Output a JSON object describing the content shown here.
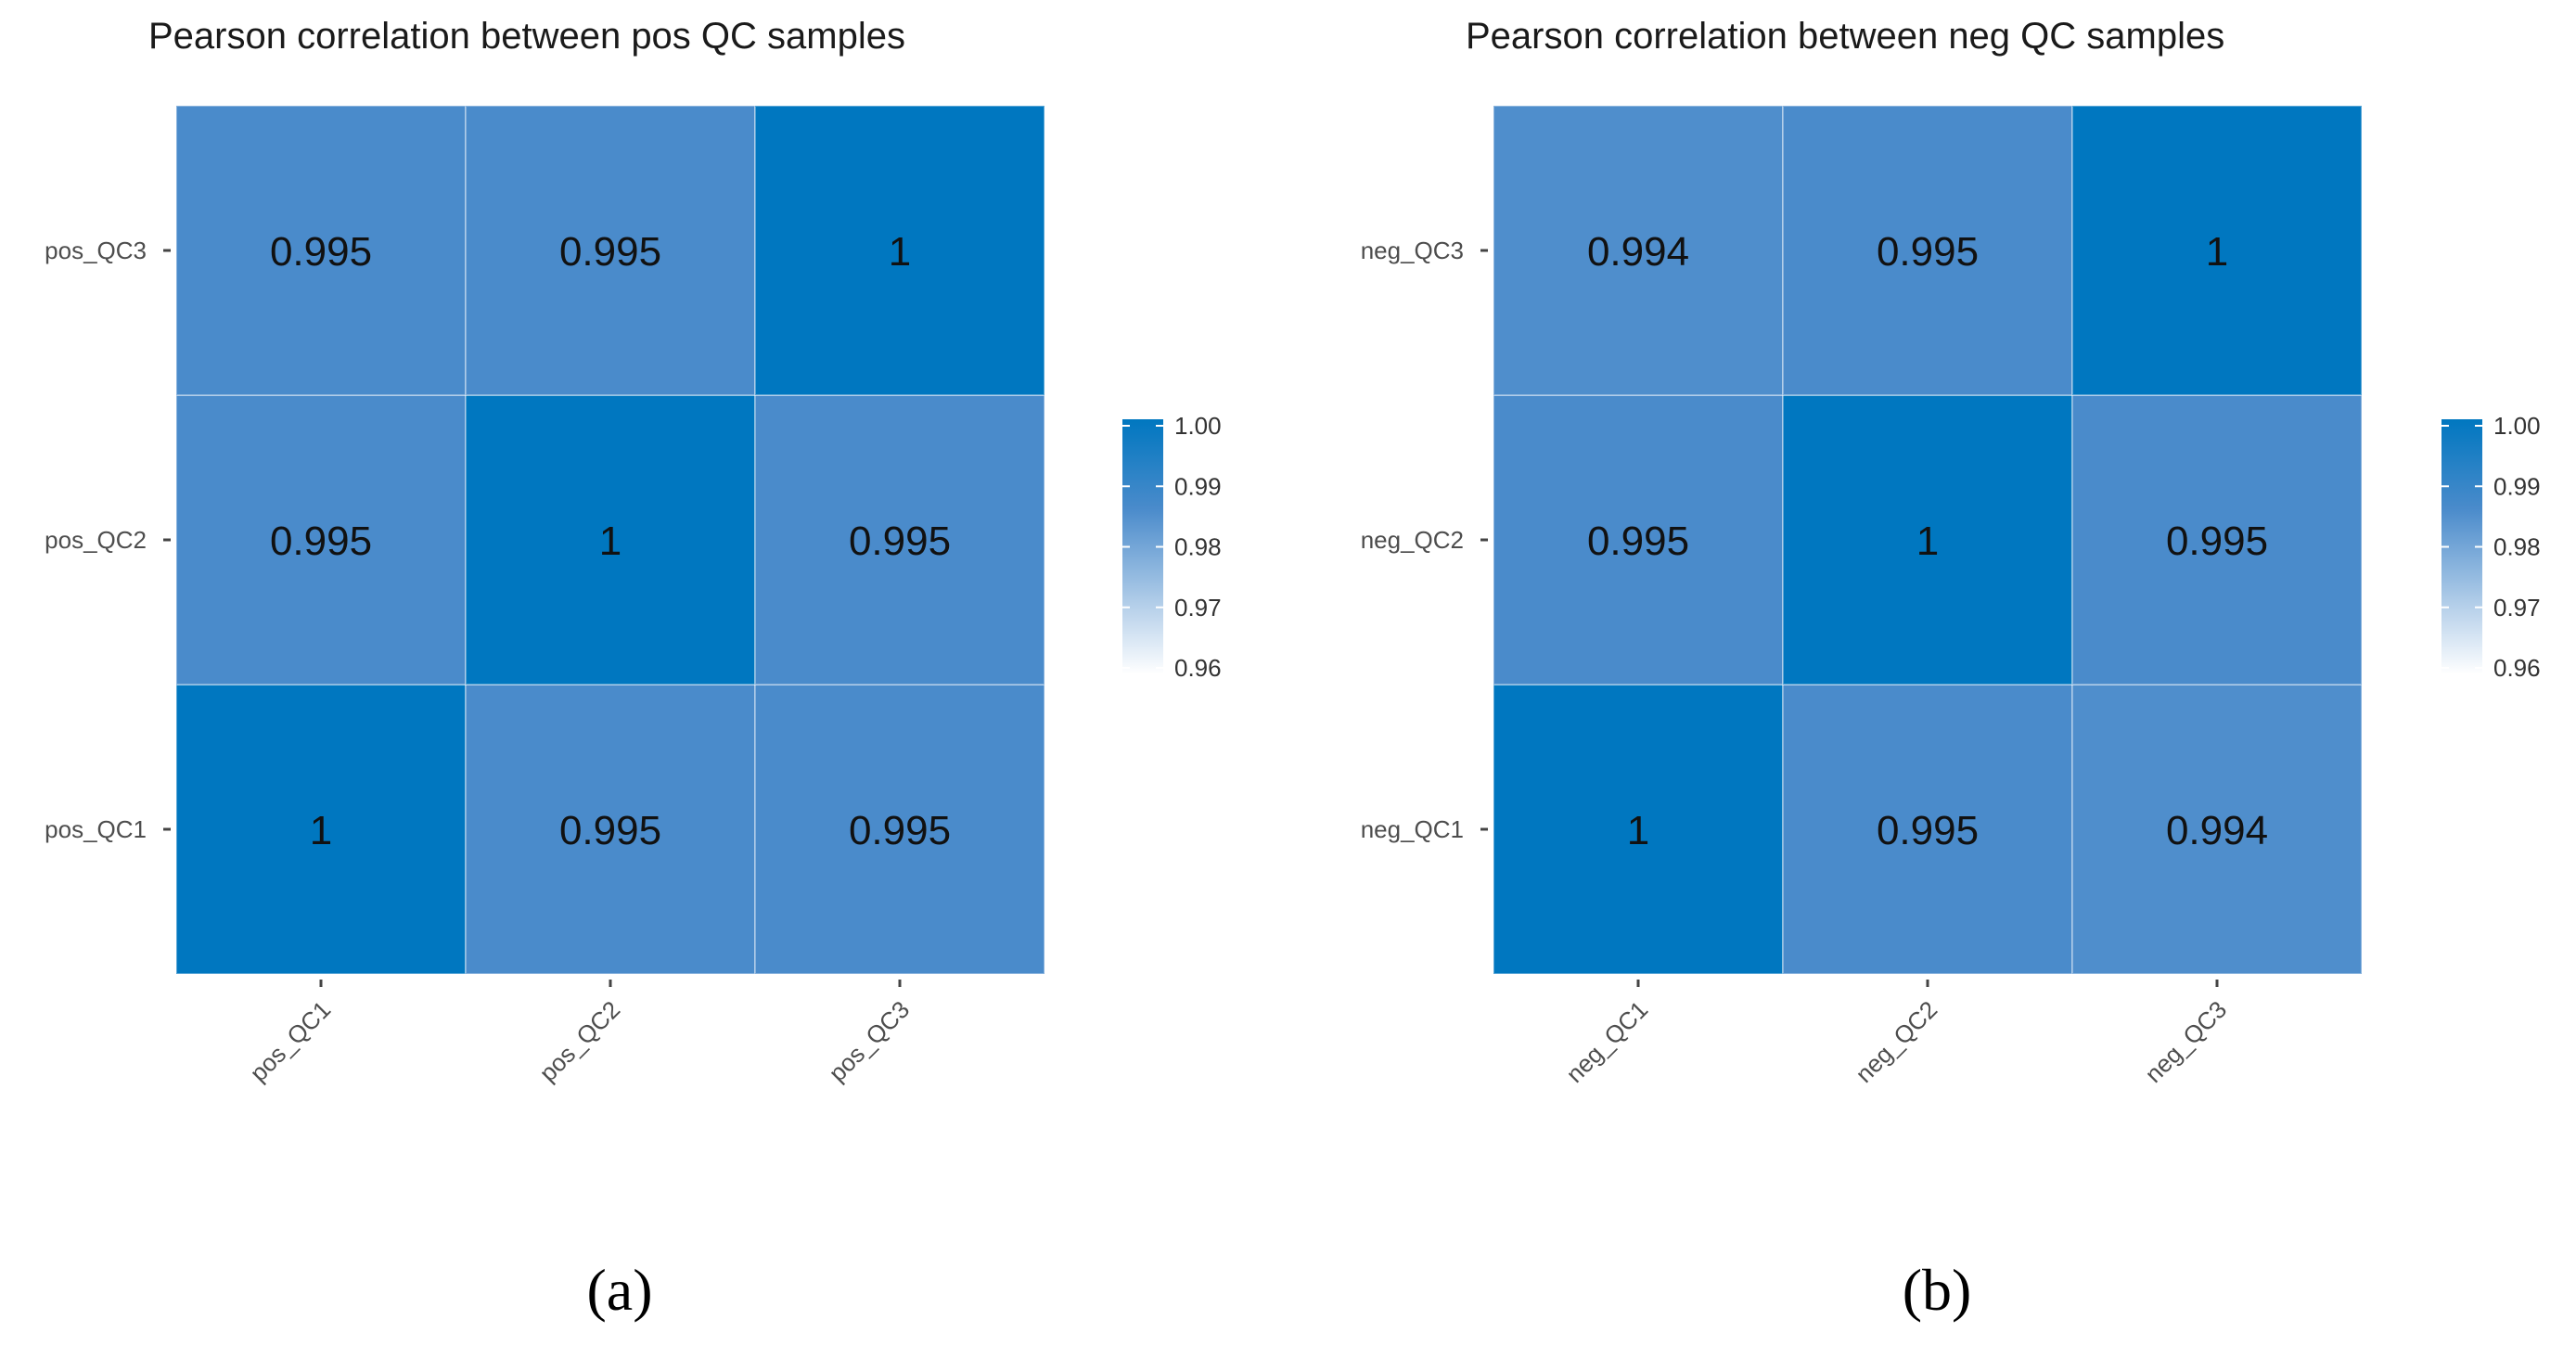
{
  "chart_data": [
    {
      "type": "heatmap",
      "title": "Pearson correlation between pos QC samples",
      "panel_label": "(a)",
      "x_categories": [
        "pos_QC1",
        "pos_QC2",
        "pos_QC3"
      ],
      "y_categories": [
        "pos_QC1",
        "pos_QC2",
        "pos_QC3"
      ],
      "values": [
        [
          1,
          0.995,
          0.995
        ],
        [
          0.995,
          1,
          0.995
        ],
        [
          0.995,
          0.995,
          1
        ]
      ],
      "value_labels": [
        [
          "1",
          "0.995",
          "0.995"
        ],
        [
          "0.995",
          "1",
          "0.995"
        ],
        [
          "0.995",
          "0.995",
          "1"
        ]
      ],
      "colorbar": {
        "range": [
          0.96,
          1.0
        ],
        "ticks": [
          1.0,
          0.99,
          0.98,
          0.97,
          0.96
        ],
        "tick_labels": [
          "1.00",
          "0.99",
          "0.98",
          "0.97",
          "0.96"
        ],
        "low_color": "#ffffff",
        "high_color": "#0077c0"
      },
      "grid": true,
      "legend": "right"
    },
    {
      "type": "heatmap",
      "title": "Pearson correlation between neg QC samples",
      "panel_label": "(b)",
      "x_categories": [
        "neg_QC1",
        "neg_QC2",
        "neg_QC3"
      ],
      "y_categories": [
        "neg_QC1",
        "neg_QC2",
        "neg_QC3"
      ],
      "values": [
        [
          1,
          0.995,
          0.994
        ],
        [
          0.995,
          1,
          0.995
        ],
        [
          0.994,
          0.995,
          1
        ]
      ],
      "value_labels": [
        [
          "1",
          "0.995",
          "0.994"
        ],
        [
          "0.995",
          "1",
          "0.995"
        ],
        [
          "0.994",
          "0.995",
          "1"
        ]
      ],
      "colorbar": {
        "range": [
          0.96,
          1.0
        ],
        "ticks": [
          1.0,
          0.99,
          0.98,
          0.97,
          0.96
        ],
        "tick_labels": [
          "1.00",
          "0.99",
          "0.98",
          "0.97",
          "0.96"
        ],
        "low_color": "#ffffff",
        "high_color": "#0077c0"
      },
      "grid": true,
      "legend": "right"
    }
  ]
}
